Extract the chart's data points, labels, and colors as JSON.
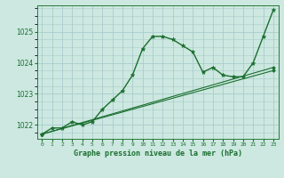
{
  "title": "Graphe pression niveau de la mer (hPa)",
  "background_color": "#cce8e0",
  "grid_color": "#aacccc",
  "line_color": "#1a6e2e",
  "xlim": [
    -0.5,
    23.5
  ],
  "ylim": [
    1021.55,
    1025.85
  ],
  "yticks": [
    1022,
    1023,
    1024,
    1025
  ],
  "xtick_labels": [
    "0",
    "1",
    "2",
    "3",
    "4",
    "5",
    "6",
    "7",
    "8",
    "9",
    "10",
    "11",
    "12",
    "13",
    "14",
    "15",
    "16",
    "17",
    "18",
    "19",
    "20",
    "21",
    "22",
    "23"
  ],
  "series": [
    {
      "x": [
        0,
        1,
        2,
        3,
        4,
        5,
        6,
        7,
        8,
        9,
        10,
        11,
        12,
        13,
        14,
        15,
        16,
        17,
        18,
        19,
        20,
        21,
        22,
        23
      ],
      "y": [
        1021.7,
        1021.9,
        1021.9,
        1022.1,
        1022.0,
        1022.1,
        1022.5,
        1022.8,
        1023.1,
        1023.6,
        1024.45,
        1024.85,
        1024.85,
        1024.75,
        1024.55,
        1024.35,
        1023.7,
        1023.85,
        1023.6,
        1023.55,
        1023.55,
        1024.0,
        1024.85,
        1025.7
      ],
      "marker": "*",
      "linewidth": 1.0,
      "markersize": 3.5
    },
    {
      "x": [
        0,
        23
      ],
      "y": [
        1021.7,
        1023.85
      ],
      "marker": "D",
      "linewidth": 0.8,
      "markersize": 2.0
    },
    {
      "x": [
        0,
        23
      ],
      "y": [
        1021.7,
        1023.75
      ],
      "marker": "D",
      "linewidth": 0.8,
      "markersize": 2.0
    }
  ]
}
